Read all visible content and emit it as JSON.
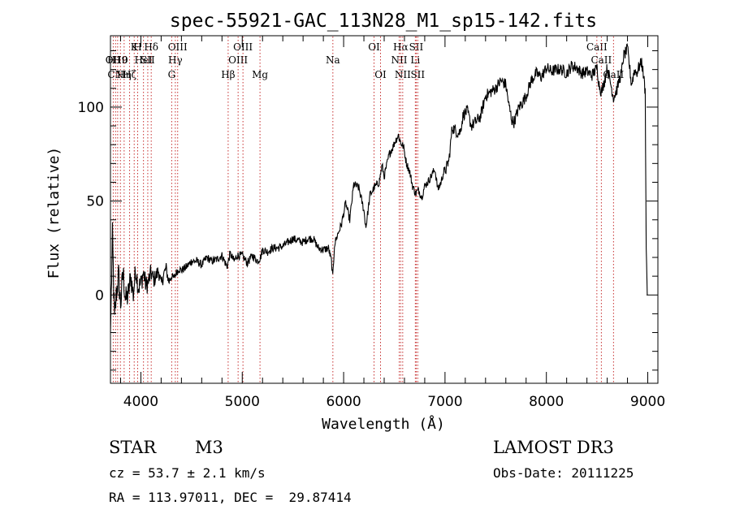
{
  "chart_data": {
    "type": "line",
    "title": "spec-55921-GAC_113N28_M1_sp15-142.fits",
    "xlabel": "Wavelength (Å)",
    "ylabel": "Flux (relative)",
    "xlim": [
      3700,
      9100
    ],
    "ylim": [
      -47,
      138
    ],
    "xticks": [
      4000,
      5000,
      6000,
      7000,
      8000,
      9000
    ],
    "yticks": [
      0,
      50,
      100
    ],
    "grid": false,
    "series": [
      {
        "name": "spectrum",
        "x": [
          3700,
          3720,
          3740,
          3760,
          3780,
          3800,
          3825,
          3850,
          3875,
          3900,
          3925,
          3950,
          3975,
          4000,
          4025,
          4050,
          4075,
          4100,
          4125,
          4150,
          4175,
          4200,
          4225,
          4250,
          4275,
          4300,
          4325,
          4350,
          4375,
          4400,
          4450,
          4500,
          4550,
          4600,
          4650,
          4700,
          4750,
          4800,
          4850,
          4880,
          4920,
          4950,
          5000,
          5050,
          5100,
          5150,
          5180,
          5200,
          5250,
          5300,
          5350,
          5400,
          5450,
          5500,
          5550,
          5600,
          5650,
          5700,
          5750,
          5800,
          5850,
          5880,
          5893,
          5910,
          5940,
          5980,
          6020,
          6060,
          6100,
          6150,
          6200,
          6220,
          6260,
          6300,
          6350,
          6380,
          6400,
          6450,
          6480,
          6510,
          6540,
          6563,
          6590,
          6620,
          6650,
          6680,
          6710,
          6740,
          6770,
          6800,
          6830,
          6850,
          6870,
          6900,
          6930,
          6960,
          6990,
          7010,
          7040,
          7070,
          7100,
          7130,
          7150,
          7180,
          7220,
          7260,
          7300,
          7350,
          7400,
          7450,
          7500,
          7550,
          7600,
          7630,
          7660,
          7680,
          7700,
          7730,
          7760,
          7800,
          7850,
          7900,
          7950,
          8000,
          8050,
          8100,
          8150,
          8200,
          8250,
          8300,
          8350,
          8400,
          8450,
          8500,
          8520,
          8542,
          8570,
          8600,
          8640,
          8662,
          8700,
          8720,
          8740,
          8760,
          8800,
          8840,
          8870,
          8890,
          8910,
          8940,
          8960,
          8975,
          8985,
          8995
        ],
        "values": [
          -20,
          30,
          -14,
          2,
          10,
          -5,
          12,
          -3,
          0,
          10,
          0,
          14,
          4,
          6,
          12,
          5,
          7,
          12,
          8,
          10,
          13,
          5,
          11,
          14,
          7,
          10,
          9,
          12,
          14,
          13,
          15,
          18,
          18,
          16,
          20,
          18,
          19,
          21,
          15,
          22,
          18,
          21,
          21,
          17,
          21,
          18,
          20,
          24,
          23,
          25,
          25,
          26,
          28,
          30,
          29,
          28,
          30,
          30,
          25,
          24,
          25,
          18,
          9,
          27,
          32,
          38,
          49,
          40,
          59,
          57,
          45,
          36,
          53,
          57,
          60,
          69,
          63,
          75,
          78,
          82,
          85,
          81,
          79,
          70,
          66,
          58,
          54,
          56,
          52,
          58,
          60,
          62,
          64,
          67,
          56,
          60,
          66,
          67,
          72,
          89,
          88,
          86,
          87,
          96,
          98,
          90,
          92,
          95,
          106,
          108,
          110,
          114,
          112,
          101,
          93,
          92,
          95,
          100,
          102,
          106,
          114,
          118,
          116,
          121,
          119,
          120,
          120,
          118,
          122,
          121,
          118,
          119,
          117,
          121,
          112,
          108,
          113,
          121,
          111,
          105,
          110,
          115,
          118,
          127,
          131,
          112,
          120,
          118,
          121,
          124,
          116,
          108,
          25,
          0
        ]
      }
    ],
    "line_markers": [
      {
        "wavelength": 3727,
        "label": "OII",
        "row": 2
      },
      {
        "wavelength": 3750,
        "label": "CN",
        "row": 3
      },
      {
        "wavelength": 3771,
        "label": "H10",
        "row": 2
      },
      {
        "wavelength": 3798,
        "label": "H9",
        "row": 2
      },
      {
        "wavelength": 3835,
        "label": "Hη",
        "row": 3
      },
      {
        "wavelength": 3889,
        "label": "Hζ",
        "row": 3
      },
      {
        "wavelength": 3934,
        "label": "K",
        "row": 1
      },
      {
        "wavelength": 3968,
        "label": "H",
        "row": 1
      },
      {
        "wavelength": 4026,
        "label": "HeI",
        "row": 2
      },
      {
        "wavelength": 4068,
        "label": "SII",
        "row": 2
      },
      {
        "wavelength": 4102,
        "label": "Hδ",
        "row": 1
      },
      {
        "wavelength": 4304,
        "label": "G",
        "row": 3
      },
      {
        "wavelength": 4340,
        "label": "Hγ",
        "row": 2
      },
      {
        "wavelength": 4363,
        "label": "OIII",
        "row": 1
      },
      {
        "wavelength": 4861,
        "label": "Hβ",
        "row": 3
      },
      {
        "wavelength": 4959,
        "label": "OIII",
        "row": 2
      },
      {
        "wavelength": 5007,
        "label": "OIII",
        "row": 1
      },
      {
        "wavelength": 5175,
        "label": "Mg",
        "row": 3
      },
      {
        "wavelength": 5894,
        "label": "Na",
        "row": 2
      },
      {
        "wavelength": 6300,
        "label": "OI",
        "row": 1
      },
      {
        "wavelength": 6364,
        "label": "OI",
        "row": 3
      },
      {
        "wavelength": 6548,
        "label": "NII",
        "row": 2
      },
      {
        "wavelength": 6563,
        "label": "Hα",
        "row": 1
      },
      {
        "wavelength": 6583,
        "label": "NII",
        "row": 3
      },
      {
        "wavelength": 6707,
        "label": "Li",
        "row": 2
      },
      {
        "wavelength": 6716,
        "label": "SII",
        "row": 1
      },
      {
        "wavelength": 6731,
        "label": "SII",
        "row": 3
      },
      {
        "wavelength": 8498,
        "label": "CaII",
        "row": 1
      },
      {
        "wavelength": 8542,
        "label": "CaII",
        "row": 2
      },
      {
        "wavelength": 8662,
        "label": "CaII",
        "row": 3
      }
    ]
  },
  "footer": {
    "class_label": "STAR",
    "subclass": "M3",
    "survey": "LAMOST DR3",
    "redshift": "cz = 53.7 ± 2.1 km/s",
    "obs_date": "Obs-Date: 20111225",
    "coords": "RA = 113.97011, DEC =  29.87414"
  }
}
